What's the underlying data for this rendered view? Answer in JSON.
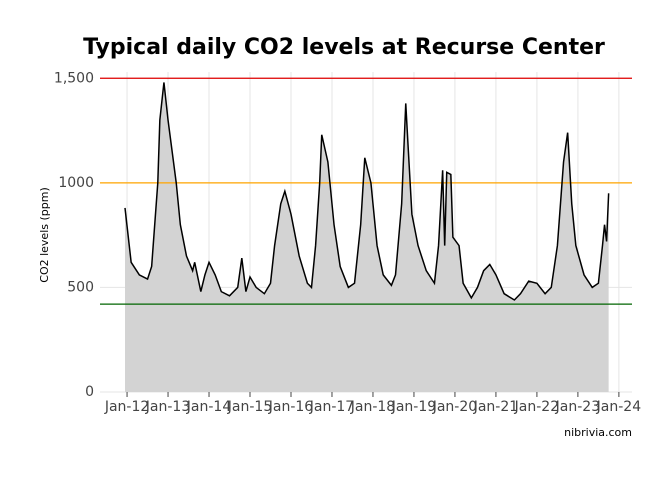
{
  "chart_data": {
    "type": "area",
    "title": "Typical daily CO2 levels at Recurse Center",
    "y_label": "CO2 levels (ppm)",
    "source": "nibrivia.com",
    "x": [
      11.95,
      12.1,
      12.3,
      12.5,
      12.6,
      12.75,
      12.8,
      12.9,
      13.0,
      13.2,
      13.3,
      13.45,
      13.6,
      13.65,
      13.8,
      13.9,
      14.0,
      14.15,
      14.3,
      14.5,
      14.7,
      14.8,
      14.9,
      15.0,
      15.15,
      15.35,
      15.5,
      15.6,
      15.75,
      15.85,
      16.0,
      16.2,
      16.4,
      16.5,
      16.6,
      16.7,
      16.75,
      16.9,
      17.05,
      17.2,
      17.4,
      17.55,
      17.7,
      17.8,
      17.95,
      18.1,
      18.25,
      18.45,
      18.55,
      18.7,
      18.8,
      18.85,
      18.95,
      19.1,
      19.3,
      19.5,
      19.6,
      19.7,
      19.75,
      19.8,
      19.9,
      19.95,
      20.1,
      20.2,
      20.4,
      20.55,
      20.7,
      20.85,
      21.0,
      21.2,
      21.45,
      21.6,
      21.8,
      22.0,
      22.2,
      22.35,
      22.5,
      22.65,
      22.75,
      22.85,
      22.95,
      23.15,
      23.35,
      23.5,
      23.6,
      23.65,
      23.7,
      23.75
    ],
    "series": [
      {
        "color": "#000000",
        "fill": "#d3d3d3",
        "values": [
          880,
          620,
          560,
          540,
          600,
          1000,
          1300,
          1480,
          1300,
          1000,
          800,
          650,
          580,
          620,
          480,
          560,
          620,
          560,
          480,
          460,
          500,
          640,
          480,
          550,
          500,
          470,
          520,
          700,
          900,
          960,
          850,
          650,
          520,
          500,
          700,
          1000,
          1230,
          1100,
          800,
          600,
          500,
          520,
          800,
          1120,
          1000,
          700,
          560,
          510,
          560,
          900,
          1380,
          1200,
          850,
          700,
          580,
          520,
          700,
          1060,
          700,
          1050,
          1040,
          740,
          700,
          520,
          450,
          500,
          580,
          610,
          560,
          470,
          440,
          470,
          530,
          520,
          470,
          500,
          700,
          1100,
          1240,
          900,
          700,
          560,
          500,
          520,
          700,
          800,
          720,
          950
        ]
      }
    ],
    "hlines": [
      {
        "value": 1500,
        "color": "#e00000"
      },
      {
        "value": 1000,
        "color": "#ffa500"
      },
      {
        "value": 420,
        "color": "#006400"
      }
    ],
    "xlim": [
      11.34,
      24.32
    ],
    "xticks": [
      {
        "value": 12,
        "label": "Jan-12"
      },
      {
        "value": 13,
        "label": "Jan-13"
      },
      {
        "value": 14,
        "label": "Jan-14"
      },
      {
        "value": 15,
        "label": "Jan-15"
      },
      {
        "value": 16,
        "label": "Jan-16"
      },
      {
        "value": 17,
        "label": "Jan-17"
      },
      {
        "value": 18,
        "label": "Jan-18"
      },
      {
        "value": 19,
        "label": "Jan-19"
      },
      {
        "value": 20,
        "label": "Jan-20"
      },
      {
        "value": 21,
        "label": "Jan-21"
      },
      {
        "value": 22,
        "label": "Jan-22"
      },
      {
        "value": 23,
        "label": "Jan-23"
      },
      {
        "value": 24,
        "label": "Jan-24"
      }
    ],
    "ylim": [
      0,
      1530
    ],
    "yticks": [
      0,
      500,
      1000,
      {
        "value": 1500,
        "label": "1,500"
      }
    ],
    "grid": true
  }
}
